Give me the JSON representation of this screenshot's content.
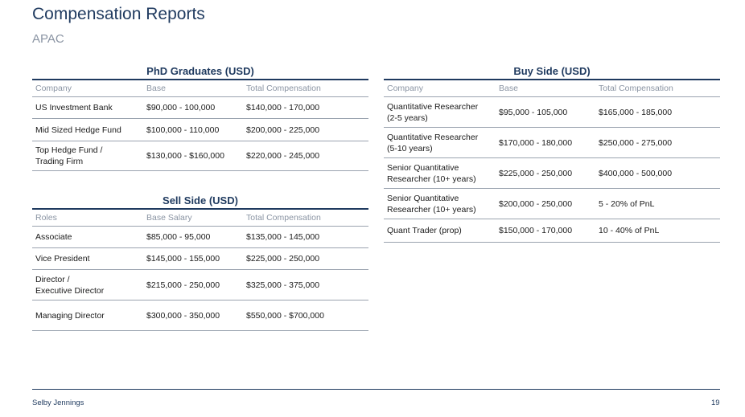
{
  "header": {
    "title": "Compensation Reports",
    "subtitle": "APAC"
  },
  "phd": {
    "title": "PhD Graduates (USD)",
    "columns": [
      "Company",
      "Base",
      "Total Compensation"
    ],
    "rows": [
      [
        "US Investment Bank",
        "$90,000 - 100,000",
        "$140,000 - 170,000"
      ],
      [
        "Mid Sized Hedge Fund",
        "$100,000 - 110,000",
        "$200,000 - 225,000"
      ],
      [
        "Top Hedge Fund /\nTrading Firm",
        "$130,000 - $160,000",
        "$220,000 - 245,000"
      ]
    ]
  },
  "sell": {
    "title": "Sell Side (USD)",
    "columns": [
      "Roles",
      "Base Salary",
      "Total Compensation"
    ],
    "rows": [
      [
        "Associate",
        "$85,000 - 95,000",
        "$135,000 - 145,000"
      ],
      [
        "Vice President",
        "$145,000 - 155,000",
        "$225,000 - 250,000"
      ],
      [
        "Director /\nExecutive Director",
        "$215,000 - 250,000",
        "$325,000 - 375,000"
      ],
      [
        "Managing Director",
        "$300,000 - 350,000",
        "$550,000 - $700,000"
      ]
    ]
  },
  "buy": {
    "title": "Buy Side (USD)",
    "columns": [
      "Company",
      "Base",
      "Total Compensation"
    ],
    "rows": [
      [
        "Quantitative Researcher\n(2-5 years)",
        "$95,000 - 105,000",
        "$165,000 - 185,000"
      ],
      [
        "Quantitative Researcher\n(5-10 years)",
        "$170,000 - 180,000",
        "$250,000 - 275,000"
      ],
      [
        "Senior Quantitative\nResearcher (10+ years)",
        "$225,000 - 250,000",
        "$400,000 - 500,000"
      ],
      [
        "Senior Quantitative\nResearcher (10+ years)",
        "$200,000 - 250,000",
        "5 - 20% of PnL"
      ],
      [
        "Quant Trader (prop)",
        "$150,000 - 170,000",
        "10 - 40% of PnL"
      ]
    ]
  },
  "footer": {
    "brand": "Selby Jennings",
    "page": "19"
  }
}
